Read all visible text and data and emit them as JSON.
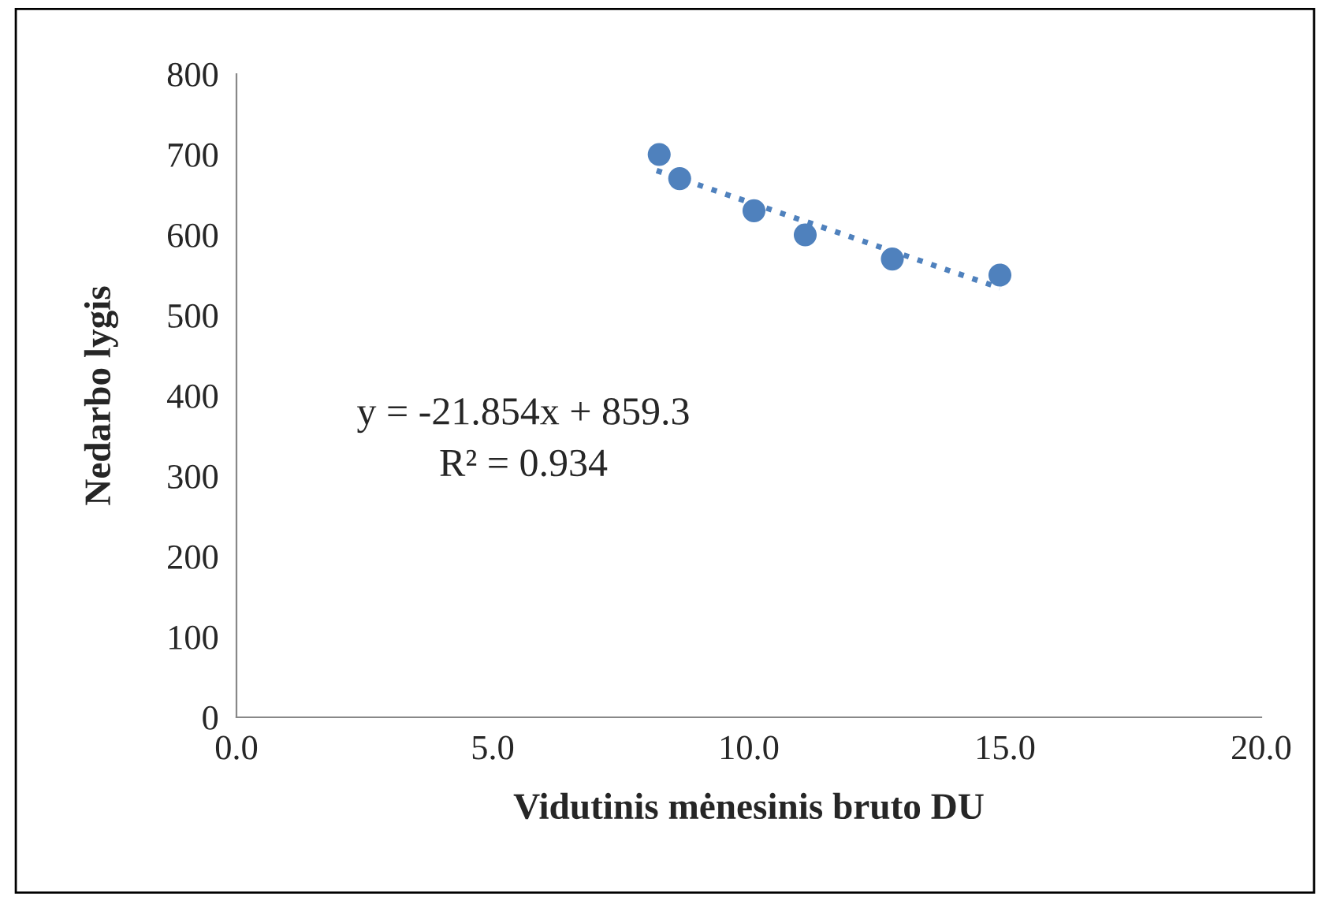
{
  "chart_data": {
    "type": "scatter",
    "xlabel": "Vidutinis mėnesinis bruto DU",
    "ylabel": "Nedarbo lygis",
    "xlim": [
      0,
      20
    ],
    "xticks": [
      {
        "value": 0,
        "label": "0.0"
      },
      {
        "value": 5,
        "label": "5.0"
      },
      {
        "value": 10,
        "label": "10.0"
      },
      {
        "value": 15,
        "label": "15.0"
      },
      {
        "value": 20,
        "label": "20.0"
      }
    ],
    "ylim": [
      0,
      800
    ],
    "yticks": [
      0,
      100,
      200,
      300,
      400,
      500,
      600,
      700,
      800
    ],
    "grid": false,
    "legend": false,
    "marker": "circle",
    "series": [
      {
        "color": "#4f81bd",
        "x": [
          8.25,
          8.65,
          10.1,
          11.1,
          12.8,
          14.9
        ],
        "values": [
          700,
          670,
          630,
          600,
          570,
          550
        ]
      },
      {
        "type": "line",
        "color": "#4f81bd",
        "line_style": "dotted",
        "marker": "none",
        "x": [
          8.2,
          14.9
        ],
        "values": [
          680,
          534
        ]
      }
    ],
    "annotations": [
      "y = -21.854x + 859.3",
      "R² = 0.934"
    ]
  }
}
